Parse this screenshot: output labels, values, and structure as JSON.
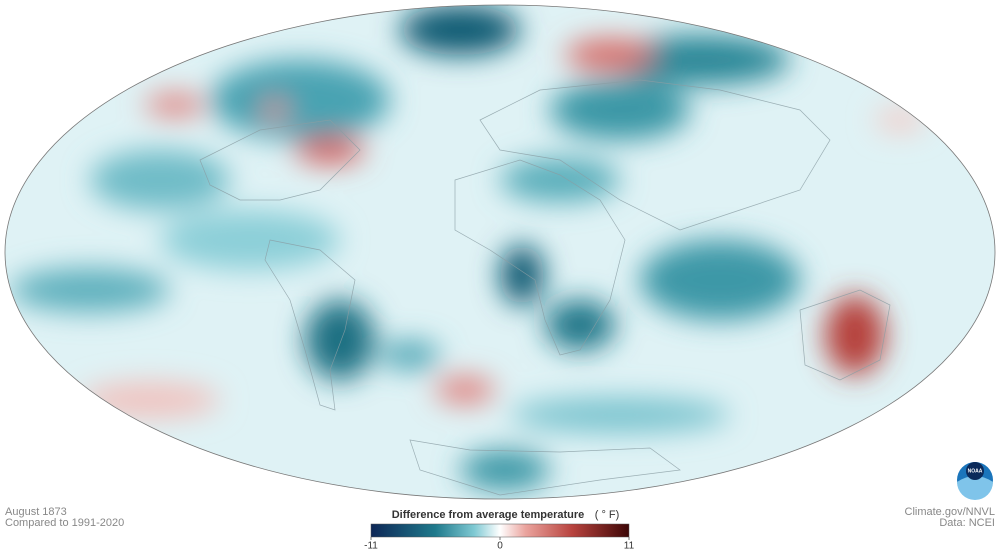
{
  "map": {
    "date": "August 1873",
    "baseline": "Compared to 1991-2020"
  },
  "legend": {
    "title": "Difference from average temperature",
    "unit": "( ° F)",
    "range": [
      -11,
      11
    ],
    "ticks": [
      -11,
      0,
      11
    ]
  },
  "credits": {
    "source": "Climate.gov/NNVL",
    "data": "Data: NCEI",
    "logo": "NOAA"
  }
}
